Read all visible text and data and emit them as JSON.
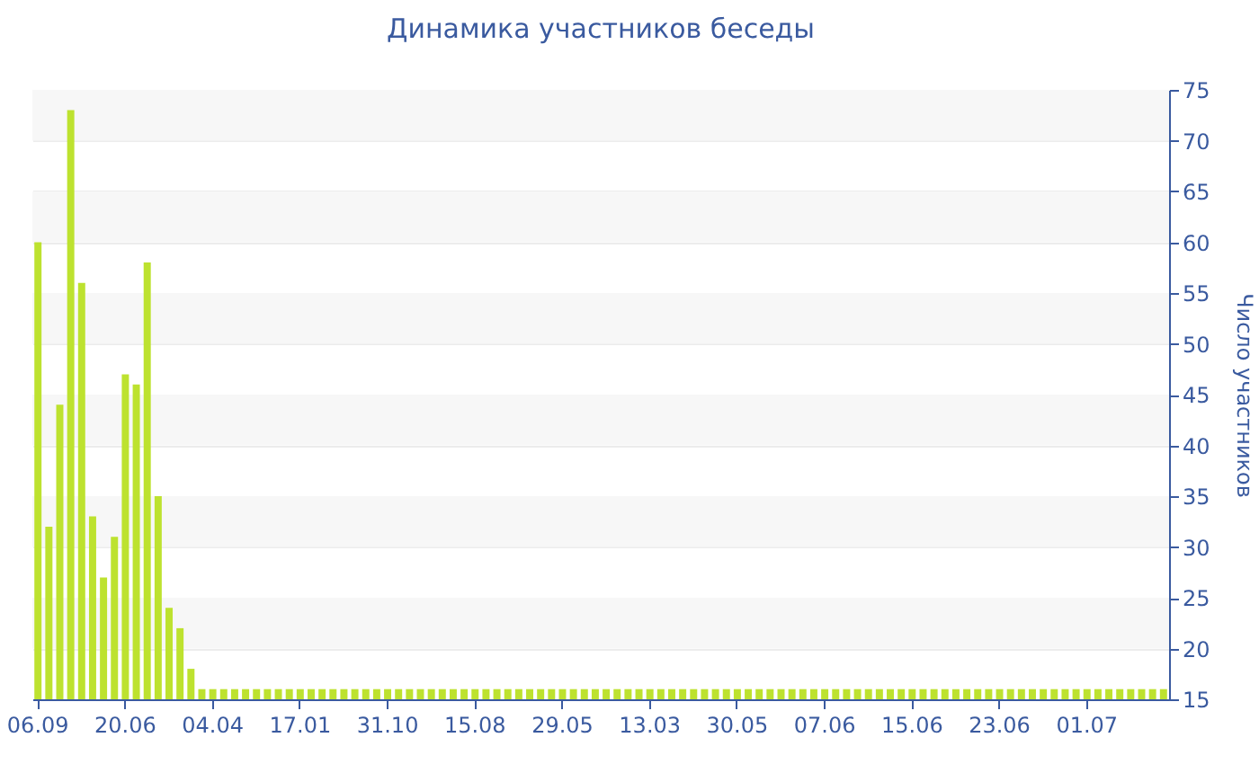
{
  "chart_data": {
    "type": "bar",
    "title": "Динамика участников беседы",
    "ylabel": "Число участников",
    "categories": [
      "06.09",
      null,
      null,
      null,
      null,
      null,
      null,
      null,
      "20.06",
      null,
      null,
      null,
      null,
      null,
      null,
      null,
      "04.04",
      null,
      null,
      null,
      null,
      null,
      null,
      null,
      "17.01",
      null,
      null,
      null,
      null,
      null,
      null,
      null,
      "31.10",
      null,
      null,
      null,
      null,
      null,
      null,
      null,
      "15.08",
      null,
      null,
      null,
      null,
      null,
      null,
      null,
      "29.05",
      null,
      null,
      null,
      null,
      null,
      null,
      null,
      "13.03",
      null,
      null,
      null,
      null,
      null,
      null,
      null,
      "30.05",
      null,
      null,
      null,
      null,
      null,
      null,
      null,
      "07.06",
      null,
      null,
      null,
      null,
      null,
      null,
      null,
      "15.06",
      null,
      null,
      null,
      null,
      null,
      null,
      null,
      "23.06",
      null,
      null,
      null,
      null,
      null,
      null,
      null,
      "01.07",
      null,
      null,
      null,
      null,
      null,
      null,
      null
    ],
    "values": [
      60,
      32,
      44,
      73,
      56,
      33,
      27,
      31,
      47,
      46,
      58,
      35,
      24,
      22,
      18,
      16,
      16,
      16,
      16,
      16,
      16,
      16,
      16,
      16,
      16,
      16,
      16,
      16,
      16,
      16,
      16,
      16,
      16,
      16,
      16,
      16,
      16,
      16,
      16,
      16,
      16,
      16,
      16,
      16,
      16,
      16,
      16,
      16,
      16,
      16,
      16,
      16,
      16,
      16,
      16,
      16,
      16,
      16,
      16,
      16,
      16,
      16,
      16,
      16,
      16,
      16,
      16,
      16,
      16,
      16,
      16,
      16,
      16,
      16,
      16,
      16,
      16,
      16,
      16,
      16,
      16,
      16,
      16,
      16,
      16,
      16,
      16,
      16,
      16,
      16,
      16,
      16,
      16,
      16,
      16,
      16,
      16,
      16,
      16,
      16,
      16,
      16,
      16,
      16
    ],
    "color": "#bde22f",
    "ylim": [
      15,
      75
    ],
    "yticks": [
      15,
      20,
      25,
      30,
      35,
      40,
      45,
      50,
      55,
      60,
      65,
      70,
      75
    ],
    "grid": true
  }
}
